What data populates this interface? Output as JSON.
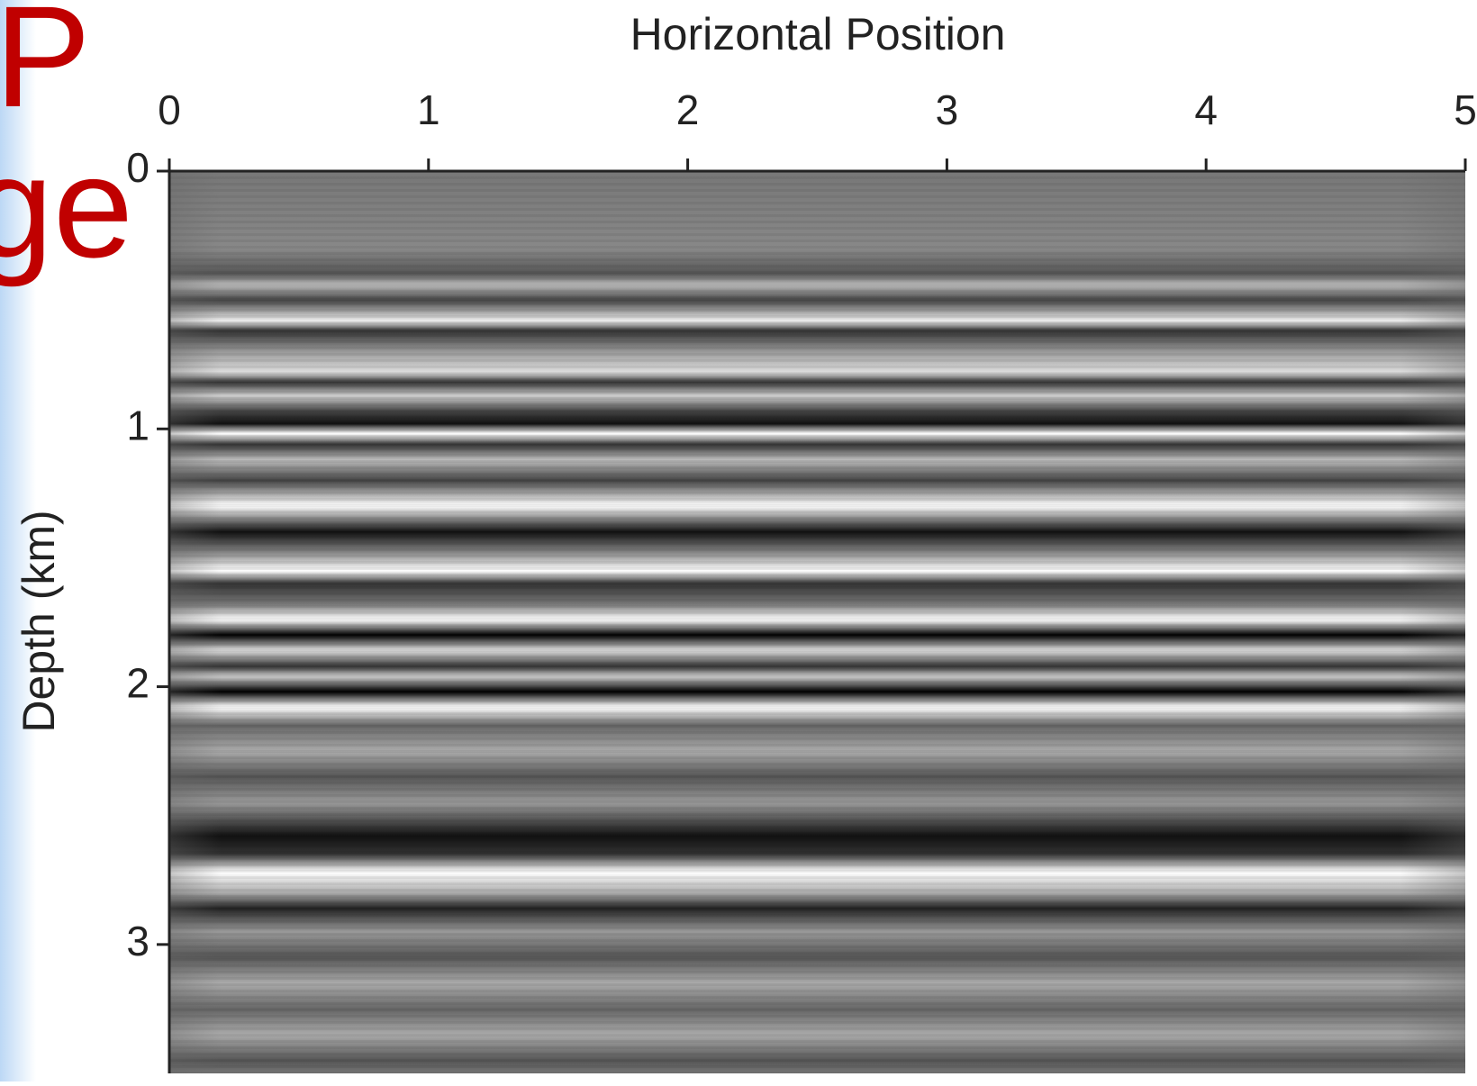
{
  "background_text": [
    "P",
    "ge"
  ],
  "chart_data": {
    "type": "seismic-image",
    "title": "Horizontal Position",
    "ylabel": "Depth (km)",
    "xlim": [
      0,
      5
    ],
    "xticks": [
      0,
      1,
      2,
      3,
      4,
      5
    ],
    "ylim": [
      0,
      3.5
    ],
    "yticks": [
      0,
      1,
      2,
      3
    ],
    "x_axis_position": "top",
    "y_inverted": true
  }
}
